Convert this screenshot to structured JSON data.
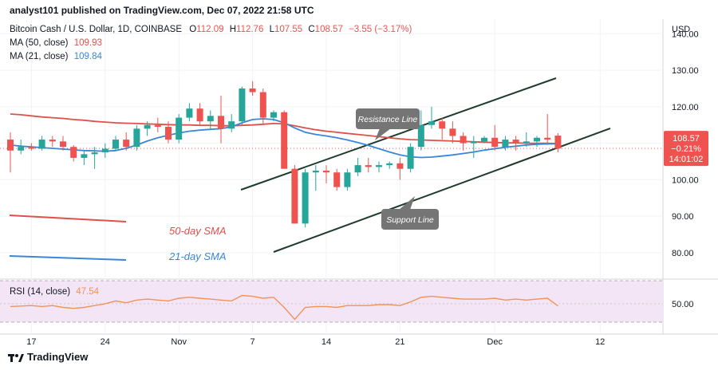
{
  "header": {
    "publisher_text": "analyst101 published on TradingView.com, Dec 07, 2022 21:58 UTC"
  },
  "legend": {
    "symbol": "Bitcoin Cash / U.S. Dollar, 1D, COINBASE",
    "ohlc": [
      {
        "label": "O",
        "value": "112.09"
      },
      {
        "label": "H",
        "value": "112.76"
      },
      {
        "label": "L",
        "value": "107.55"
      },
      {
        "label": "C",
        "value": "108.57"
      }
    ],
    "change": "−3.55 (−3.17%)",
    "ma50_label": "MA (50, close)",
    "ma50_value": "109.93",
    "ma21_label": "MA (21, close)",
    "ma21_value": "109.84",
    "rsi_label": "RSI (14, close)",
    "rsi_value": "47.54"
  },
  "price_tag": {
    "price": "108.57",
    "pct": "−0.21%",
    "countdown": "14:01:02"
  },
  "footer": {
    "brand": "TradingView"
  },
  "colors": {
    "up": "#26a69a",
    "down": "#ef5350",
    "ma50": "#e0504a",
    "ma21": "#3a86d8",
    "rsi": "#f0935a",
    "rsi_band": "#f3e5f5"
  },
  "chart_data": {
    "type": "candlestick",
    "currency": "USD",
    "y_ticks": [
      80,
      90,
      100,
      110,
      120,
      130,
      140
    ],
    "ylim": [
      73,
      144
    ],
    "x_tick_labels": [
      {
        "label": "17",
        "index": 2
      },
      {
        "label": "24",
        "index": 9
      },
      {
        "label": "Nov",
        "index": 16
      },
      {
        "label": "7",
        "index": 23
      },
      {
        "label": "14",
        "index": 30
      },
      {
        "label": "21",
        "index": 37
      },
      {
        "label": "Dec",
        "index": 46
      },
      {
        "label": "12",
        "index": 56
      }
    ],
    "candles": [
      {
        "o": 111,
        "h": 113,
        "l": 102,
        "c": 108
      },
      {
        "o": 108,
        "h": 111,
        "l": 107,
        "c": 109
      },
      {
        "o": 109,
        "h": 110,
        "l": 108,
        "c": 108.5
      },
      {
        "o": 108.5,
        "h": 112,
        "l": 108,
        "c": 111
      },
      {
        "o": 111,
        "h": 112,
        "l": 109,
        "c": 110.5
      },
      {
        "o": 110.5,
        "h": 112,
        "l": 108,
        "c": 109
      },
      {
        "o": 109,
        "h": 109.5,
        "l": 105,
        "c": 106
      },
      {
        "o": 106,
        "h": 108,
        "l": 104,
        "c": 107
      },
      {
        "o": 107,
        "h": 109,
        "l": 103,
        "c": 107.5
      },
      {
        "o": 107.5,
        "h": 110,
        "l": 106,
        "c": 108.5
      },
      {
        "o": 108.5,
        "h": 112,
        "l": 108,
        "c": 111
      },
      {
        "o": 111,
        "h": 113,
        "l": 108,
        "c": 109
      },
      {
        "o": 109,
        "h": 115,
        "l": 108,
        "c": 114
      },
      {
        "o": 114,
        "h": 116,
        "l": 112,
        "c": 115
      },
      {
        "o": 115,
        "h": 117,
        "l": 113,
        "c": 114.5
      },
      {
        "o": 114.5,
        "h": 116,
        "l": 110,
        "c": 111
      },
      {
        "o": 111,
        "h": 118,
        "l": 110,
        "c": 117
      },
      {
        "o": 117,
        "h": 121,
        "l": 116,
        "c": 119.5
      },
      {
        "o": 119.5,
        "h": 121,
        "l": 115,
        "c": 116
      },
      {
        "o": 116,
        "h": 119,
        "l": 114,
        "c": 117.5
      },
      {
        "o": 117.5,
        "h": 123,
        "l": 110,
        "c": 114
      },
      {
        "o": 114,
        "h": 118,
        "l": 113,
        "c": 116
      },
      {
        "o": 116,
        "h": 125.5,
        "l": 115,
        "c": 125
      },
      {
        "o": 125,
        "h": 127,
        "l": 123,
        "c": 124
      },
      {
        "o": 124,
        "h": 125,
        "l": 115,
        "c": 117
      },
      {
        "o": 117,
        "h": 119,
        "l": 116,
        "c": 118.5
      },
      {
        "o": 118.5,
        "h": 119,
        "l": 103,
        "c": 103
      },
      {
        "o": 103,
        "h": 104,
        "l": 88,
        "c": 88
      },
      {
        "o": 88,
        "h": 103,
        "l": 87,
        "c": 102
      },
      {
        "o": 102,
        "h": 104,
        "l": 97,
        "c": 102.5
      },
      {
        "o": 102.5,
        "h": 104,
        "l": 99,
        "c": 102
      },
      {
        "o": 102,
        "h": 103,
        "l": 97,
        "c": 98
      },
      {
        "o": 98,
        "h": 103,
        "l": 97,
        "c": 102
      },
      {
        "o": 102,
        "h": 106,
        "l": 101,
        "c": 104
      },
      {
        "o": 104,
        "h": 106,
        "l": 102,
        "c": 103.5
      },
      {
        "o": 103.5,
        "h": 105,
        "l": 102,
        "c": 104
      },
      {
        "o": 104,
        "h": 105,
        "l": 103,
        "c": 104.5
      },
      {
        "o": 104.5,
        "h": 106,
        "l": 100,
        "c": 103
      },
      {
        "o": 103,
        "h": 110,
        "l": 102,
        "c": 109
      },
      {
        "o": 109,
        "h": 119,
        "l": 108,
        "c": 115
      },
      {
        "o": 115,
        "h": 120,
        "l": 114,
        "c": 116
      },
      {
        "o": 116,
        "h": 117,
        "l": 111,
        "c": 114
      },
      {
        "o": 114,
        "h": 116,
        "l": 110,
        "c": 112
      },
      {
        "o": 112,
        "h": 113,
        "l": 108,
        "c": 110
      },
      {
        "o": 110,
        "h": 112,
        "l": 106,
        "c": 110.5
      },
      {
        "o": 110.5,
        "h": 112,
        "l": 110,
        "c": 111.5
      },
      {
        "o": 111.5,
        "h": 115,
        "l": 108,
        "c": 109
      },
      {
        "o": 109,
        "h": 112,
        "l": 108,
        "c": 111
      },
      {
        "o": 111,
        "h": 112,
        "l": 108,
        "c": 110
      },
      {
        "o": 110,
        "h": 113,
        "l": 109,
        "c": 110.5
      },
      {
        "o": 110.5,
        "h": 112,
        "l": 109,
        "c": 111.5
      },
      {
        "o": 111.5,
        "h": 118,
        "l": 109.5,
        "c": 111
      },
      {
        "o": 112.09,
        "h": 112.76,
        "l": 107.55,
        "c": 108.57
      }
    ],
    "ma50": [
      118,
      117.8,
      117.5,
      117.2,
      117,
      116.8,
      116.5,
      116.3,
      116,
      115.8,
      115.6,
      115.5,
      115.4,
      115.3,
      115.2,
      115.1,
      115,
      115,
      114.9,
      114.9,
      114.8,
      114.8,
      114.9,
      115,
      115.2,
      115.4,
      115.3,
      114.8,
      114.2,
      113.7,
      113.3,
      113,
      112.7,
      112.4,
      112.1,
      111.8,
      111.5,
      111.2,
      111,
      110.9,
      110.8,
      110.7,
      110.6,
      110.5,
      110.4,
      110.3,
      110.2,
      110.1,
      110.1,
      110,
      110,
      110,
      109.93
    ],
    "ma21": [
      109.5,
      109.2,
      109,
      108.8,
      108.6,
      108.4,
      108.2,
      108,
      107.9,
      107.8,
      108,
      108.6,
      109.5,
      110.6,
      111.5,
      112.2,
      112.8,
      113.3,
      113.6,
      113.8,
      114,
      114.5,
      115.6,
      116.5,
      116.7,
      116.5,
      115.6,
      114.2,
      113,
      112.4,
      112,
      111.5,
      110.9,
      110.2,
      109.4,
      108.5,
      107.6,
      106.8,
      106.3,
      106.1,
      106.2,
      106.5,
      106.8,
      107.2,
      107.6,
      108.1,
      108.5,
      108.9,
      109.2,
      109.5,
      109.7,
      109.8,
      109.84
    ],
    "rsi": [
      47,
      47.5,
      48,
      47,
      48,
      46,
      45,
      46,
      48,
      50,
      53,
      51,
      54,
      55,
      54,
      53,
      56,
      57,
      56,
      55,
      54,
      53,
      59,
      58,
      56,
      57,
      46,
      33,
      46,
      47,
      47,
      46,
      48,
      48,
      48,
      49,
      49,
      48,
      52,
      57,
      58,
      57,
      56,
      55,
      55,
      55,
      56,
      54,
      55,
      54,
      55,
      56,
      47.54
    ],
    "rsi_ylim": [
      30,
      75
    ],
    "rsi_ticks": [
      50
    ],
    "annotations": [
      {
        "label": "Resistance Line"
      },
      {
        "label": "Support Line"
      },
      {
        "label": "50-day SMA"
      },
      {
        "label": "21-day SMA"
      }
    ]
  }
}
